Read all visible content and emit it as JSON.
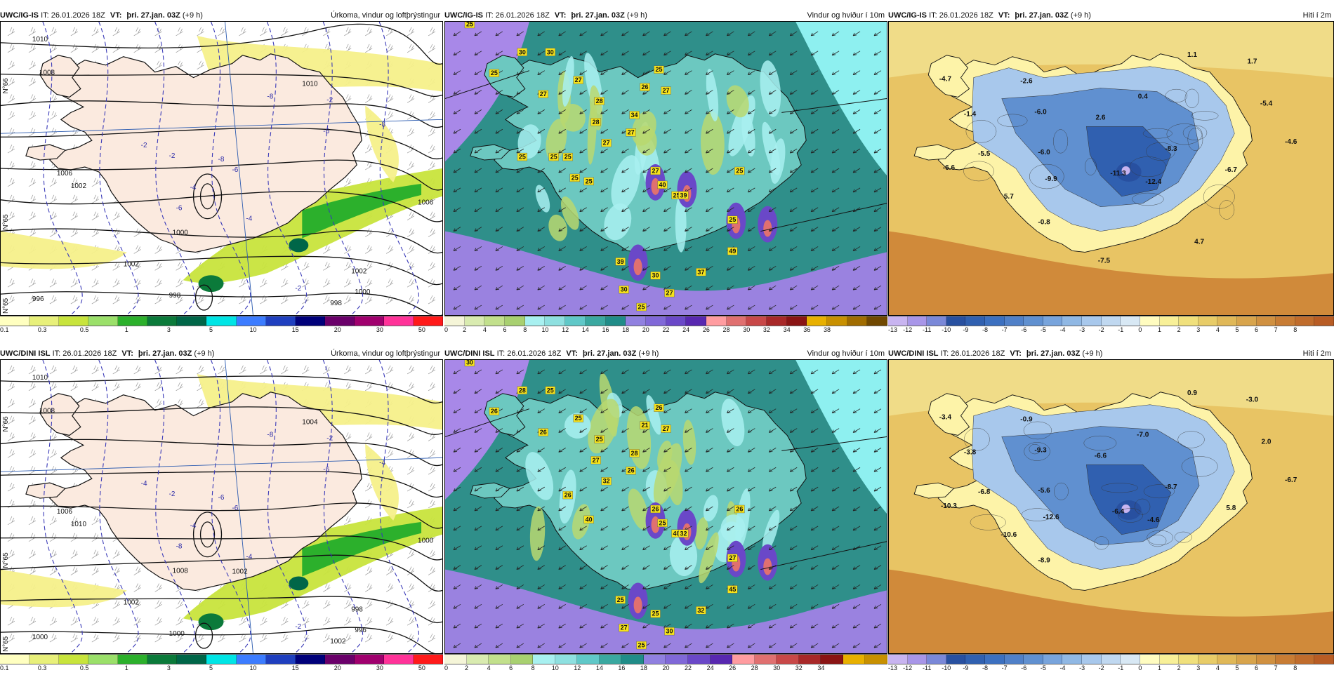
{
  "panels": [
    {
      "id": "r1c1",
      "source": "UWC/IG-IS",
      "it": "IT: 26.01.2026 18Z",
      "vt_label": "VT:",
      "vt": "þri. 27.jan. 03Z",
      "lead": "(+9 h)",
      "product": "Úrkoma, vindur og loftþrýstingur",
      "kind": "precip",
      "pressure_labels": [
        "1010",
        "1008",
        "1006",
        "1002",
        "1000",
        "1002",
        "998",
        "996",
        "1002",
        "1000",
        "998",
        "1006",
        "1010"
      ],
      "temp_labels": [
        "-2",
        "-4",
        "-6",
        "-8",
        "-2",
        "-6",
        "-8",
        "-4",
        "-2",
        "-6",
        "-8",
        "-2"
      ],
      "axis_labels": [
        "N°66",
        "N°65",
        "N°65"
      ],
      "colorbar": {
        "colors": [
          "#ffffc0",
          "#e8f07a",
          "#c8e43c",
          "#9be06a",
          "#2cb02c",
          "#0b7a3a",
          "#006648",
          "#00e5e5",
          "#3c7cff",
          "#1f3fbf",
          "#00007a",
          "#6a006a",
          "#a0006e",
          "#ff3399",
          "#ff1a1a"
        ],
        "ticks": [
          "0.1",
          "0.3",
          "0.5",
          "1",
          "3",
          "5",
          "10",
          "15",
          "20",
          "30",
          "50"
        ]
      }
    },
    {
      "id": "r1c2",
      "source": "UWC/IG-IS",
      "it": "IT: 26.01.2026 18Z",
      "vt_label": "VT:",
      "vt": "þri. 27.jan. 03Z",
      "lead": "(+9 h)",
      "product": "Vindur og hviður í 10m",
      "kind": "wind",
      "gust_labels": [
        "25",
        "30",
        "30",
        "25",
        "27",
        "27",
        "28",
        "28",
        "25",
        "27",
        "26",
        "34",
        "27",
        "27",
        "25",
        "25",
        "40",
        "25",
        "39",
        "25",
        "27",
        "39",
        "25",
        "37",
        "49",
        "27",
        "25",
        "30",
        "30",
        "25",
        "25",
        "25"
      ],
      "colorbar": {
        "colors": [
          "#f5f5d8",
          "#d9ebb0",
          "#c2e08c",
          "#a8d070",
          "#a8f0f0",
          "#8ee0e0",
          "#60c8c8",
          "#3aa8a0",
          "#208c88",
          "#9080e0",
          "#8068d8",
          "#6a48c8",
          "#5828b0",
          "#ff9ca0",
          "#e07070",
          "#c84848",
          "#a82828",
          "#8a1414",
          "#e8b000",
          "#c89000",
          "#a06c00",
          "#704800"
        ],
        "ticks": [
          "0",
          "2",
          "4",
          "6",
          "8",
          "10",
          "12",
          "14",
          "16",
          "18",
          "20",
          "22",
          "24",
          "26",
          "28",
          "30",
          "32",
          "34",
          "36",
          "38"
        ]
      }
    },
    {
      "id": "r1c3",
      "source": "UWC/IG-IS",
      "it": "IT: 26.01.2026 18Z",
      "vt_label": "VT:",
      "vt": "þri. 27.jan. 03Z",
      "lead": "(+9 h)",
      "product": "Hiti í 2m",
      "kind": "temp",
      "value_labels": [
        "-4.7",
        "-2.6",
        "1.1",
        "1.7",
        "-1.4",
        "-6.0",
        "0.4",
        "2.6",
        "-5.4",
        "-4.6",
        "-5.5",
        "-6.0",
        "-8.3",
        "-6.6",
        "-9.9",
        "-11.3",
        "-6.7",
        "-12.4",
        "5.7",
        "-0.8",
        "4.7",
        "-7.5"
      ],
      "colorbar": {
        "colors": [
          "#c8b4f0",
          "#a896e8",
          "#7a88d8",
          "#2850a0",
          "#3060b0",
          "#3c70c0",
          "#5080c8",
          "#6090d0",
          "#78a4dc",
          "#90b8e4",
          "#a8c8ec",
          "#c0d8f0",
          "#d8e8f4",
          "#fffcc0",
          "#f8f098",
          "#f0e07c",
          "#e8cc68",
          "#e0b858",
          "#d8a44c",
          "#d09040",
          "#c87c34",
          "#c06c2c",
          "#b85c24"
        ],
        "ticks": [
          "-13",
          "-12",
          "-11",
          "-10",
          "-9",
          "-8",
          "-7",
          "-6",
          "-5",
          "-4",
          "-3",
          "-2",
          "-1",
          "0",
          "1",
          "2",
          "3",
          "4",
          "5",
          "6",
          "7",
          "8"
        ]
      }
    },
    {
      "id": "r2c1",
      "source": "UWC/DINI ISL",
      "it": "IT: 26.01.2026 18Z",
      "vt_label": "VT:",
      "vt": "þri. 27.jan. 03Z",
      "lead": "(+9 h)",
      "product": "Úrkoma, vindur og loftþrýstingur",
      "kind": "precip",
      "pressure_labels": [
        "1010",
        "1008",
        "1006",
        "1010",
        "1008",
        "1002",
        "1000",
        "1000",
        "998",
        "996",
        "1002",
        "1000",
        "1004",
        "1002"
      ],
      "temp_labels": [
        "-2",
        "-4",
        "-6",
        "-8",
        "-2",
        "-8",
        "-6",
        "-4",
        "-2",
        "-6",
        "-4",
        "-4"
      ],
      "axis_labels": [
        "N°66",
        "N°65",
        "N°65"
      ],
      "colorbar": {
        "colors": [
          "#ffffc0",
          "#e8f07a",
          "#c8e43c",
          "#9be06a",
          "#2cb02c",
          "#0b7a3a",
          "#006648",
          "#00e5e5",
          "#3c7cff",
          "#1f3fbf",
          "#00007a",
          "#6a006a",
          "#a0006e",
          "#ff3399",
          "#ff1a1a"
        ],
        "ticks": [
          "0.1",
          "0.3",
          "0.5",
          "1",
          "3",
          "5",
          "10",
          "15",
          "20",
          "30",
          "50"
        ]
      }
    },
    {
      "id": "r2c2",
      "source": "UWC/DINI ISL",
      "it": "IT: 26.01.2026 18Z",
      "vt_label": "VT:",
      "vt": "þri. 27.jan. 03Z",
      "lead": "(+9 h)",
      "product": "Vindur og hviður í 10m",
      "kind": "wind",
      "gust_labels": [
        "30",
        "28",
        "25",
        "26",
        "25",
        "26",
        "25",
        "27",
        "26",
        "27",
        "21",
        "28",
        "26",
        "32",
        "40",
        "26",
        "25",
        "40",
        "32",
        "26",
        "26",
        "25",
        "27",
        "32",
        "45",
        "30",
        "25",
        "27",
        "25"
      ],
      "colorbar": {
        "colors": [
          "#f5f5d8",
          "#d9ebb0",
          "#c2e08c",
          "#a8d070",
          "#a8f0f0",
          "#8ee0e0",
          "#60c8c8",
          "#3aa8a0",
          "#208c88",
          "#9080e0",
          "#8068d8",
          "#6a48c8",
          "#5828b0",
          "#ff9ca0",
          "#e07070",
          "#c84848",
          "#a82828",
          "#8a1414",
          "#e8b000",
          "#c89000"
        ],
        "ticks": [
          "0",
          "2",
          "4",
          "6",
          "8",
          "10",
          "12",
          "14",
          "16",
          "18",
          "20",
          "22",
          "24",
          "26",
          "28",
          "30",
          "32",
          "34"
        ]
      }
    },
    {
      "id": "r2c3",
      "source": "UWC/DINI ISL",
      "it": "IT: 26.01.2026 18Z",
      "vt_label": "VT:",
      "vt": "þri. 27.jan. 03Z",
      "lead": "(+9 h)",
      "product": "Hiti í 2m",
      "kind": "temp",
      "value_labels": [
        "-3.4",
        "-0.9",
        "0.9",
        "-3.0",
        "-3.8",
        "-9.3",
        "-7.0",
        "-6.6",
        "2.0",
        "-6.7",
        "-6.8",
        "-5.6",
        "-8.7",
        "-10.3",
        "-12.6",
        "-6.4",
        "5.8",
        "-4.6",
        "-10.6",
        "-8.9"
      ],
      "colorbar": {
        "colors": [
          "#c8b4f0",
          "#a896e8",
          "#7a88d8",
          "#2850a0",
          "#3060b0",
          "#3c70c0",
          "#5080c8",
          "#6090d0",
          "#78a4dc",
          "#90b8e4",
          "#a8c8ec",
          "#c0d8f0",
          "#d8e8f4",
          "#fffcc0",
          "#f8f098",
          "#f0e07c",
          "#e8cc68",
          "#e0b858",
          "#d8a44c",
          "#d09040",
          "#c87c34",
          "#c06c2c",
          "#b85c24"
        ],
        "ticks": [
          "-13",
          "-12",
          "-11",
          "-10",
          "-9",
          "-8",
          "-7",
          "-6",
          "-5",
          "-4",
          "-3",
          "-2",
          "-1",
          "0",
          "1",
          "2",
          "3",
          "4",
          "5",
          "6",
          "7",
          "8"
        ]
      }
    }
  ]
}
